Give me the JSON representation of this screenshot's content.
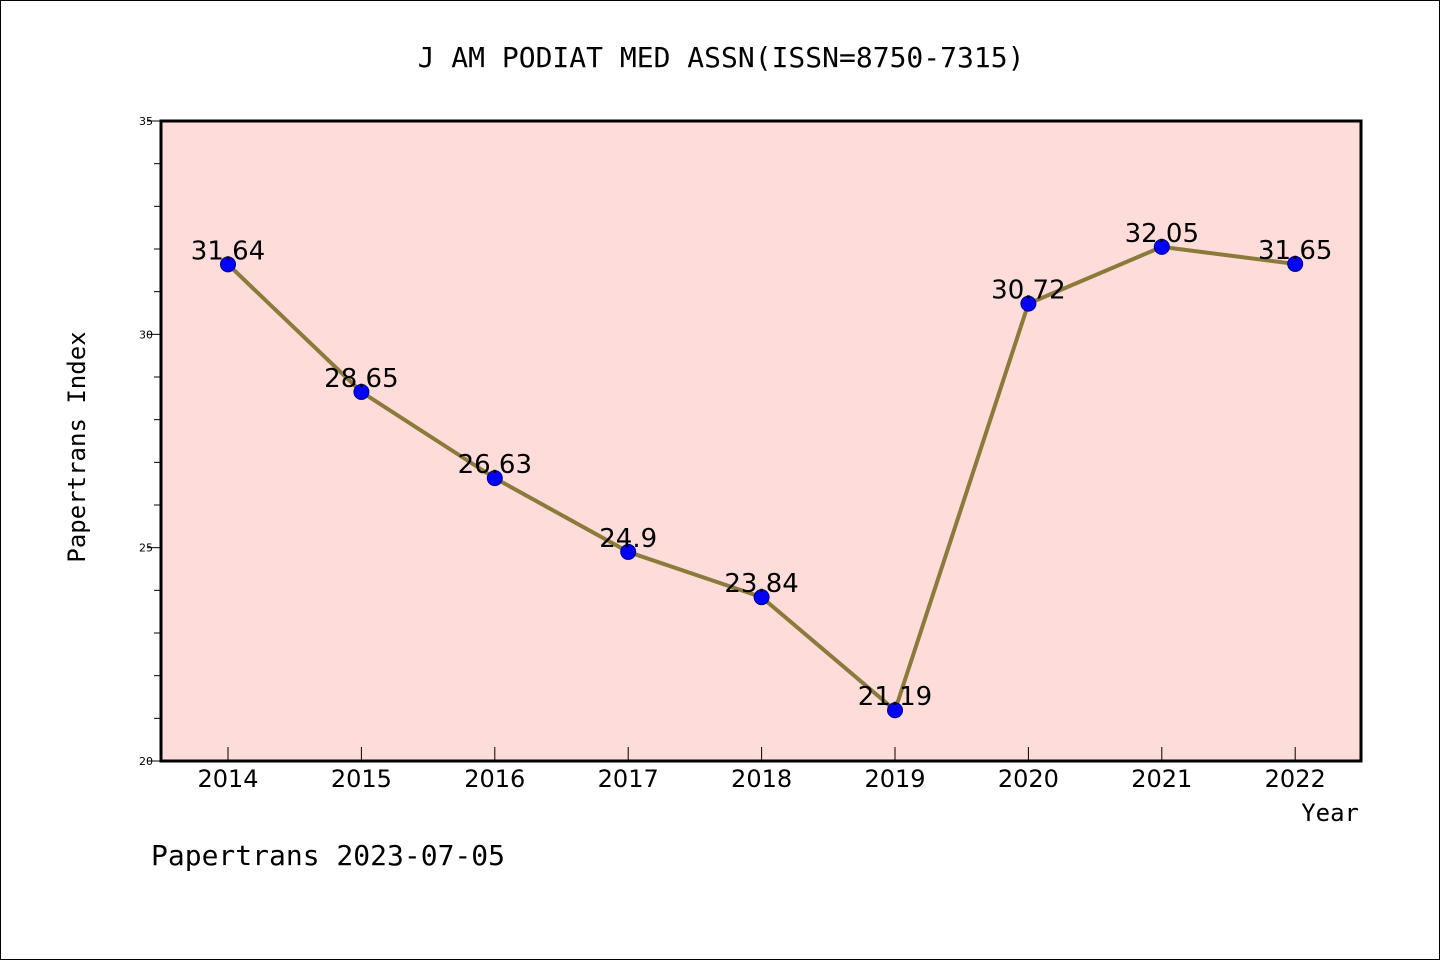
{
  "chart_data": {
    "type": "line",
    "title": "J AM PODIAT MED ASSN(ISSN=8750-7315)",
    "xlabel": "Year",
    "ylabel": "Papertrans Index",
    "categories": [
      "2014",
      "2015",
      "2016",
      "2017",
      "2018",
      "2019",
      "2020",
      "2021",
      "2022"
    ],
    "values": [
      31.64,
      28.65,
      26.63,
      24.9,
      23.84,
      21.19,
      30.72,
      32.05,
      31.65
    ],
    "data_labels": [
      "31.64",
      "28.65",
      "26.63",
      "24.9",
      "23.84",
      "21.19",
      "30.72",
      "32.05",
      "31.65"
    ],
    "ylim": [
      20,
      35
    ],
    "y_ticks": [
      "20",
      "25",
      "30",
      "35"
    ],
    "grid": false,
    "legend": "none",
    "colors": {
      "plot_background": "#fddcda",
      "line": "#8b7a3a",
      "marker": "#0000ff"
    }
  },
  "footer": {
    "text": "Papertrans 2023-07-05"
  }
}
